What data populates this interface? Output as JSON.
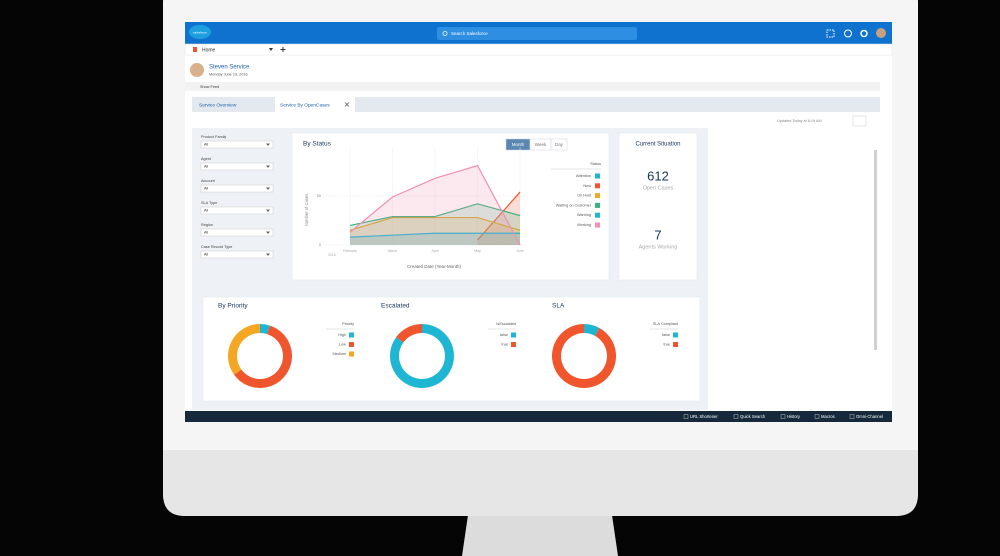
{
  "header": {
    "logo": "salesforce",
    "search": "Search Salesforce"
  },
  "nav": {
    "tab": "Home"
  },
  "profile": {
    "name": "Steven Service",
    "date": "Monday June 13, 2016"
  },
  "feed": {
    "toggle": "Show Feed"
  },
  "tabs": [
    "Service Overview",
    "Service By OpenCases"
  ],
  "updated": "Updated Today at 6:19 AM",
  "filters": [
    {
      "label": "Product Family",
      "value": "All"
    },
    {
      "label": "Agent",
      "value": "All"
    },
    {
      "label": "Account",
      "value": "All"
    },
    {
      "label": "SLA Type",
      "value": "All"
    },
    {
      "label": "Region",
      "value": "All"
    },
    {
      "label": "Case Record Type",
      "value": "All"
    }
  ],
  "status_chart": {
    "type": "area",
    "title": "By Status",
    "buttons": [
      "Month",
      "Week",
      "Day"
    ],
    "y_label": "Number of Cases",
    "x_label": "Created Date (Year-Month)",
    "categories": [
      "February",
      "March",
      "April",
      "May",
      "June"
    ],
    "year": "2016",
    "ylim": [
      0,
      100
    ],
    "yticks": [
      0,
      50
    ],
    "legend_title": "Status",
    "series": [
      {
        "name": "Attention",
        "color": "#1fb6d4",
        "values": [
          null,
          null,
          null,
          null,
          null
        ]
      },
      {
        "name": "New",
        "color": "#f0562d",
        "values": [
          null,
          null,
          null,
          5,
          54
        ]
      },
      {
        "name": "On Hold",
        "color": "#f5a623",
        "values": [
          15,
          28,
          28,
          28,
          15
        ]
      },
      {
        "name": "Waiting on Customer",
        "color": "#3ab27f",
        "values": [
          20,
          29,
          29,
          42,
          30
        ]
      },
      {
        "name": "Warning",
        "color": "#1fb6d4",
        "values": [
          8,
          10,
          12,
          12,
          12
        ]
      },
      {
        "name": "Working",
        "color": "#f28fb3",
        "values": [
          13,
          49,
          68,
          81,
          0
        ]
      }
    ]
  },
  "situation": {
    "title": "Current Situation",
    "metrics": [
      {
        "value": 612,
        "label": "Open Cases"
      },
      {
        "value": 7,
        "label": "Agents Working"
      }
    ]
  },
  "donuts": [
    {
      "title": "By Priority",
      "legend_title": "Priority",
      "series": [
        {
          "name": "High",
          "color": "#1fb6d4",
          "value": 5
        },
        {
          "name": "Low",
          "color": "#f0562d",
          "value": 60
        },
        {
          "name": "Medium",
          "color": "#f5a623",
          "value": 35
        }
      ]
    },
    {
      "title": "Escalated",
      "legend_title": "IsEscalated",
      "series": [
        {
          "name": "false",
          "color": "#1fb6d4",
          "value": 85
        },
        {
          "name": "true",
          "color": "#f0562d",
          "value": 15
        }
      ]
    },
    {
      "title": "SLA",
      "legend_title": "SLA Compliant",
      "series": [
        {
          "name": "false",
          "color": "#1fb6d4",
          "value": 8
        },
        {
          "name": "true",
          "color": "#f0562d",
          "value": 92
        }
      ]
    }
  ],
  "bottom_bar": [
    "URL Shortener",
    "Quick Search",
    "History",
    "Macros",
    "Omni-Channel"
  ]
}
